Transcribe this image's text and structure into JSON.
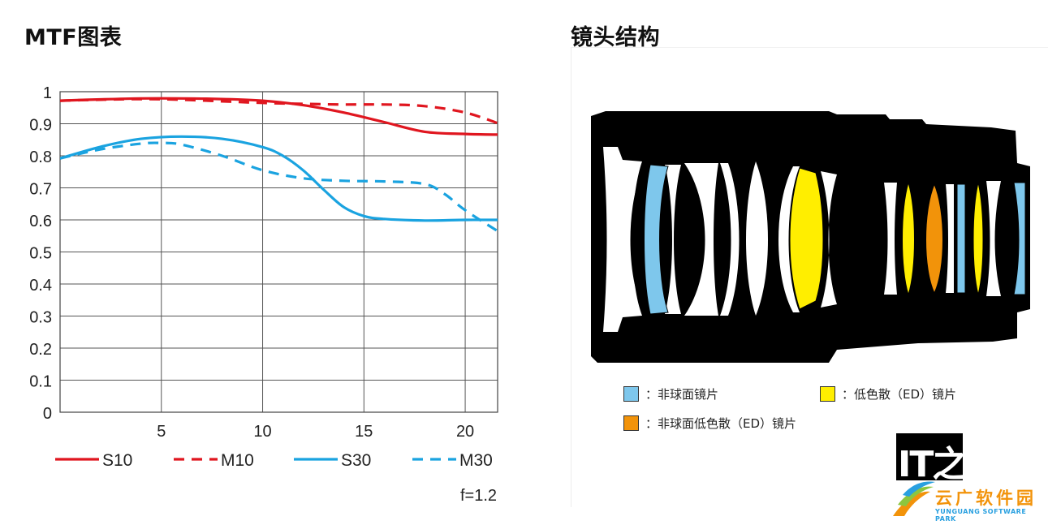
{
  "mtf_title": "MTF图表",
  "lens_title": "镜头结构",
  "chart_data": {
    "type": "line",
    "title": "MTF图表",
    "xlabel": "",
    "ylabel": "",
    "xlim": [
      0,
      21.6
    ],
    "ylim": [
      0,
      1
    ],
    "x_ticks": [
      "5",
      "10",
      "15",
      "20"
    ],
    "y_ticks": [
      "0",
      "0.1",
      "0.2",
      "0.3",
      "0.4",
      "0.5",
      "0.6",
      "0.7",
      "0.8",
      "0.9",
      "1"
    ],
    "grid": true,
    "legend_position": "bottom",
    "annotation": "f=1.2",
    "series": [
      {
        "name": "S10",
        "color": "#e0161f",
        "dash": "solid",
        "x": [
          0,
          2,
          4,
          6,
          8,
          10,
          12,
          14,
          16,
          18,
          20,
          21.6
        ],
        "y": [
          0.972,
          0.976,
          0.979,
          0.979,
          0.977,
          0.972,
          0.958,
          0.935,
          0.905,
          0.875,
          0.868,
          0.866
        ]
      },
      {
        "name": "M10",
        "color": "#e0161f",
        "dash": "dashed",
        "x": [
          0,
          2,
          4,
          6,
          8,
          10,
          12,
          14,
          16,
          18,
          20,
          21.6
        ],
        "y": [
          0.972,
          0.975,
          0.977,
          0.975,
          0.97,
          0.965,
          0.962,
          0.96,
          0.96,
          0.955,
          0.935,
          0.902
        ]
      },
      {
        "name": "S30",
        "color": "#1aa3e0",
        "dash": "solid",
        "x": [
          0,
          2,
          4,
          6,
          8,
          10,
          11,
          12,
          13,
          14,
          15,
          16,
          18,
          20,
          21.6
        ],
        "y": [
          0.792,
          0.828,
          0.853,
          0.86,
          0.853,
          0.827,
          0.8,
          0.755,
          0.695,
          0.64,
          0.612,
          0.603,
          0.598,
          0.6,
          0.6
        ]
      },
      {
        "name": "M30",
        "color": "#1aa3e0",
        "dash": "dashed",
        "x": [
          0,
          2,
          4,
          5,
          6,
          8,
          10,
          12,
          14,
          16,
          18,
          19,
          20,
          21.6
        ],
        "y": [
          0.792,
          0.82,
          0.838,
          0.84,
          0.835,
          0.8,
          0.755,
          0.73,
          0.722,
          0.72,
          0.712,
          0.68,
          0.63,
          0.565
        ]
      }
    ]
  },
  "lens_legend": [
    {
      "label": "：非球面镜片",
      "color": "#7ec7ec"
    },
    {
      "label": "：低色散（ED）镜片",
      "color": "#ffee00"
    },
    {
      "label": "：非球面低色散（ED）镜片",
      "color": "#f2930a"
    }
  ],
  "watermark": {
    "logo_text": "IT之家",
    "cn_text": "云广软件园",
    "en_text": "YUNGUANG SOFTWARE PARK"
  }
}
